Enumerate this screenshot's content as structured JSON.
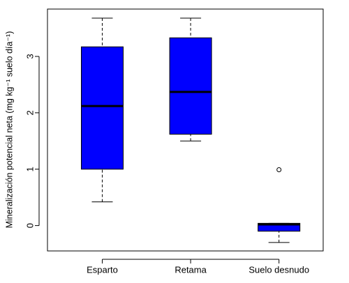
{
  "chart_data": {
    "type": "boxplot",
    "y_label": "Mineralización potencial neta (mg kg⁻¹   suelo día⁻¹)",
    "categories": [
      "Esparto",
      "Retama",
      "Suelo desnudo"
    ],
    "color": "#0000ff",
    "boxes": [
      {
        "whisker_low": 0.42,
        "q1": 1.0,
        "median": 2.12,
        "q3": 3.17,
        "whisker_high": 3.68,
        "outliers": []
      },
      {
        "whisker_low": 1.5,
        "q1": 1.62,
        "median": 2.37,
        "q3": 3.33,
        "whisker_high": 3.68,
        "outliers": []
      },
      {
        "whisker_low": -0.3,
        "q1": -0.1,
        "median": 0.02,
        "q3": 0.04,
        "whisker_high": 0.04,
        "outliers": [
          0.99
        ]
      }
    ],
    "ylim": [
      -0.45,
      3.84
    ],
    "yticks": [
      0,
      1,
      2,
      3
    ]
  }
}
